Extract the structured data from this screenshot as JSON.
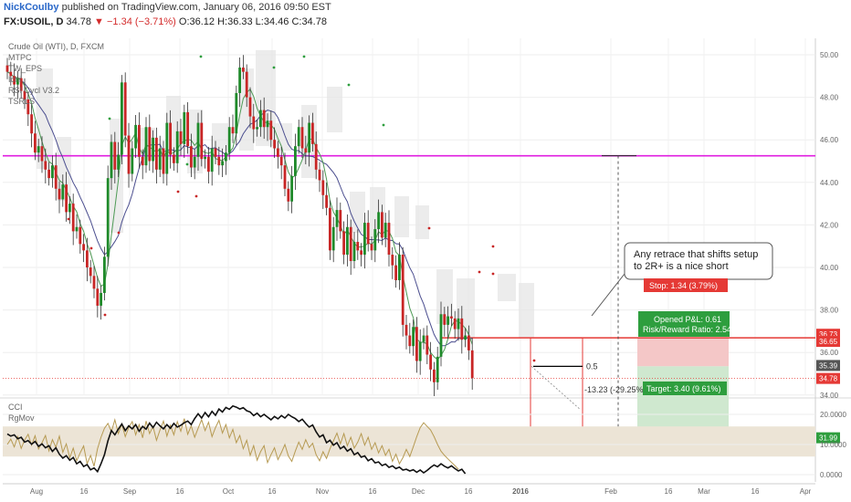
{
  "header": {
    "author": "NickCoulby",
    "published": "published on TradingView.com, January 06, 2016 09:50 EST",
    "symbol_line": "FX:USOIL, D",
    "last": "34.78",
    "change_arrow": "▼",
    "change": "−1.34 (−3.71%)",
    "ohlc": "O:36.12 H:36.33 L:34.46 C:34.78"
  },
  "legend": [
    "Crude Oil (WTI), D, FXCM",
    "MTPC",
    "TW_EPS",
    "Ichi",
    "RSI Cycl V3.2",
    "TSRLS"
  ],
  "annotation": "Any retrace that shifts setup\nto 2R+ is a nice short",
  "trade": {
    "stop_label": "Stop: 1.34 (3.79%)",
    "pnl_label": "Opened P&L: 0.61\nRisk/Reward Ratio: 2.54",
    "target_label": "Target: 3.40 (9.61%)",
    "measure_label": "-13.23 (-29.25%",
    "fib_label": "0.5"
  },
  "colors": {
    "up": "#1f8a2a",
    "down": "#c82626",
    "wick": "#333333",
    "ma_fast": "#4d9a55",
    "ma_slow": "#4b4e8f",
    "level": "#e01ee0",
    "stop": "#e53935",
    "target": "#2e9e3e",
    "stop_zone": "#f4c7c7",
    "target_zone": "#cfe8cf",
    "cci": "#111111",
    "rgmov": "#b69a52"
  },
  "chart_data": {
    "type": "candlestick",
    "symbol": "FX:USOIL",
    "timeframe": "D",
    "x_ticks": [
      "Aug",
      "16",
      "Sep",
      "16",
      "Oct",
      "16",
      "Nov",
      "16",
      "Dec",
      "16",
      "2016",
      "Feb",
      "16",
      "Mar",
      "16",
      "Apr"
    ],
    "y_ticks": [
      "50.00",
      "48.00",
      "46.00",
      "44.00",
      "42.00",
      "40.00",
      "38.00",
      "36.00",
      "34.00"
    ],
    "ylim": [
      30.5,
      51.5
    ],
    "price_tags": [
      {
        "text": "36.73",
        "value": 36.73,
        "color": "#e53935"
      },
      {
        "text": "36.65",
        "value": 36.65,
        "color": "#e53935"
      },
      {
        "text": "35.39",
        "value": 35.39,
        "color": "#555555"
      },
      {
        "text": "34.78",
        "value": 34.78,
        "color": "#e53935"
      },
      {
        "text": "31.99",
        "value": 31.99,
        "color": "#2e9e3e"
      }
    ],
    "level_line": 45.25,
    "stop_level": 36.69,
    "entry_level": 35.35,
    "target_level": 31.95,
    "last_price": 34.78,
    "closes": [
      49.2,
      49.0,
      48.6,
      48.9,
      48.3,
      47.9,
      47.2,
      46.3,
      45.4,
      45.7,
      45.0,
      44.6,
      44.2,
      44.8,
      43.7,
      43.2,
      43.9,
      42.6,
      43.0,
      41.7,
      41.9,
      41.1,
      40.8,
      40.0,
      39.6,
      39.0,
      38.2,
      38.8,
      40.5,
      44.2,
      45.9,
      44.6,
      45.3,
      48.7,
      46.2,
      44.4,
      45.6,
      46.7,
      45.2,
      44.8,
      46.6,
      45.0,
      46.1,
      44.6,
      45.6,
      44.4,
      46.8,
      45.3,
      44.9,
      46.4,
      45.8,
      47.3,
      45.7,
      44.7,
      45.2,
      46.8,
      45.1,
      45.2,
      44.5,
      45.6,
      45.2,
      44.8,
      45.0,
      45.4,
      46.6,
      46.3,
      48.2,
      49.4,
      49.2,
      48.0,
      47.1,
      46.5,
      46.6,
      47.4,
      46.6,
      46.9,
      46.0,
      45.6,
      45.2,
      44.8,
      43.7,
      43.1,
      44.3,
      45.7,
      46.6,
      45.6,
      45.4,
      46.8,
      45.8,
      44.6,
      44.1,
      43.4,
      42.8,
      40.8,
      41.9,
      42.7,
      41.7,
      40.6,
      41.9,
      40.3,
      41.2,
      40.8,
      40.6,
      42.1,
      41.1,
      40.8,
      41.8,
      42.6,
      41.4,
      42.1,
      40.6,
      40.1,
      39.4,
      40.6,
      37.3,
      36.8,
      36.3,
      37.2,
      35.6,
      36.5,
      36.8,
      35.9,
      35.2,
      34.6,
      35.8,
      37.8,
      37.3,
      37.7,
      37.6,
      37.1,
      37.6,
      36.6,
      36.8,
      36.1,
      34.8
    ],
    "indicator_panel": {
      "labels": [
        "CCI",
        "RgMov"
      ],
      "y_ticks": [
        "20.0000",
        "10.0000",
        "0.0000"
      ],
      "ylim": [
        -1,
        23
      ],
      "band": [
        6,
        16
      ],
      "cci": [
        13.5,
        12.8,
        13.2,
        11.9,
        12.4,
        10.8,
        11.3,
        10.1,
        11.0,
        9.4,
        10.2,
        8.9,
        9.6,
        7.7,
        8.9,
        6.8,
        5.5,
        6.3,
        4.8,
        5.7,
        3.6,
        4.4,
        2.7,
        3.3,
        1.6,
        2.2,
        1.0,
        3.6,
        6.6,
        11.2,
        14.6,
        13.2,
        15.1,
        16.8,
        14.6,
        16.2,
        15.2,
        16.6,
        14.4,
        16.0,
        15.1,
        17.1,
        15.6,
        17.4,
        16.2,
        15.2,
        16.6,
        15.4,
        17.0,
        15.8,
        16.4,
        17.2,
        17.8,
        16.6,
        18.6,
        20.2,
        18.8,
        20.6,
        19.2,
        21.0,
        19.7,
        21.8,
        20.8,
        22.3,
        21.7,
        22.8,
        22.4,
        21.8,
        22.2,
        21.2,
        20.8,
        19.6,
        20.4,
        19.2,
        20.0,
        19.1,
        18.2,
        19.3,
        18.5,
        19.6,
        18.8,
        20.0,
        19.2,
        18.6,
        17.6,
        18.4,
        17.0,
        15.8,
        16.5,
        14.2,
        12.5,
        13.2,
        10.6,
        11.4,
        9.8,
        10.6,
        8.6,
        9.4,
        7.8,
        8.6,
        6.6,
        7.3,
        5.8,
        6.2,
        4.6,
        5.3,
        3.9,
        4.2,
        3.0,
        3.5,
        2.4,
        2.9,
        2.0,
        2.5,
        1.5,
        1.8,
        1.2,
        1.6,
        0.8,
        1.5,
        0.6,
        1.4,
        2.4,
        3.2,
        2.6,
        3.6,
        2.8,
        2.2,
        2.9,
        2.0,
        1.2,
        1.8,
        0.3
      ],
      "rgmov": [
        10.0,
        11.8,
        9.2,
        12.6,
        8.7,
        11.5,
        13.4,
        9.8,
        12.9,
        8.5,
        10.6,
        13.0,
        7.9,
        11.6,
        9.1,
        12.8,
        7.4,
        10.2,
        5.6,
        8.8,
        4.6,
        7.2,
        9.5,
        3.6,
        6.4,
        2.8,
        8.6,
        12.4,
        15.4,
        17.0,
        14.2,
        18.2,
        13.6,
        16.8,
        12.6,
        15.6,
        17.6,
        13.2,
        16.6,
        12.2,
        17.8,
        13.6,
        16.0,
        11.4,
        14.8,
        17.8,
        12.8,
        16.4,
        13.2,
        17.6,
        14.4,
        18.6,
        13.4,
        16.2,
        12.4,
        15.4,
        18.2,
        14.6,
        17.4,
        12.6,
        15.6,
        18.0,
        13.8,
        16.6,
        12.2,
        15.0,
        10.6,
        13.0,
        8.6,
        11.4,
        6.4,
        9.6,
        4.8,
        7.6,
        9.6,
        4.0,
        6.6,
        8.9,
        5.0,
        7.3,
        10.0,
        6.2,
        4.4,
        7.8,
        10.8,
        8.4,
        11.6,
        9.0,
        10.4,
        6.6,
        4.6,
        7.6,
        5.4,
        8.6,
        11.2,
        13.8,
        10.2,
        13.6,
        9.6,
        12.4,
        8.8,
        10.8,
        13.6,
        9.8,
        12.4,
        8.4,
        10.6,
        7.2,
        9.6,
        6.4,
        8.4,
        4.4,
        6.8,
        3.6,
        5.6,
        8.4,
        6.0,
        9.2,
        12.6,
        15.6,
        17.2,
        16.0,
        14.8,
        12.6,
        10.0,
        7.8,
        6.4,
        5.2,
        4.1,
        3.0,
        1.8
      ]
    }
  }
}
